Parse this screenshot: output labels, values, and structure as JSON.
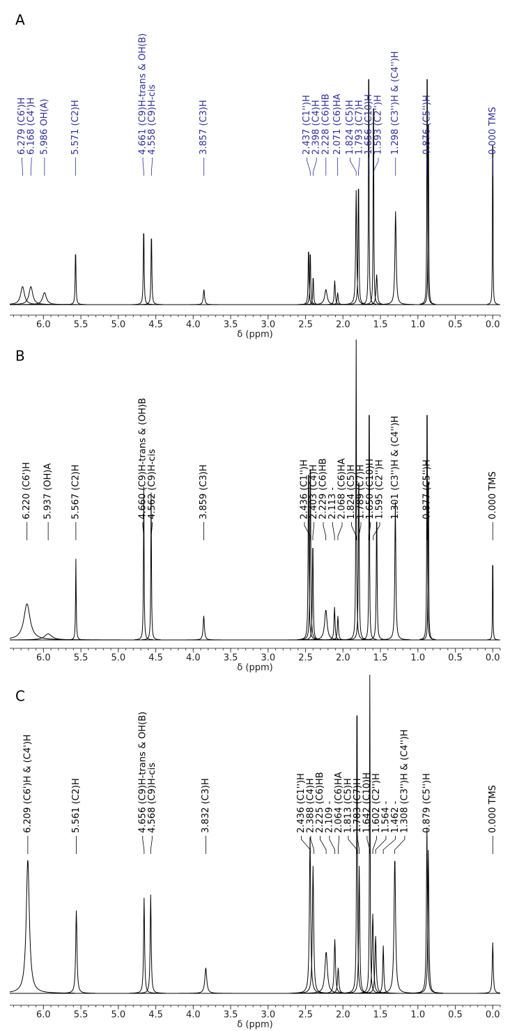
{
  "chart_data": [
    {
      "type": "spectrum",
      "label": "A",
      "xlabel": "δ (ppm)",
      "label_color": "#2e2e9a",
      "color": "#000000",
      "xlim": [
        6.45,
        -0.1
      ],
      "xticks": [
        {
          "value": 6,
          "label": "6.0"
        },
        5.5,
        {
          "value": 5,
          "label": "5.0"
        },
        4.5,
        {
          "value": 4,
          "label": "4.0"
        },
        3.5,
        {
          "value": 3,
          "label": "3.0"
        },
        2.5,
        {
          "value": 2,
          "label": "2.0"
        },
        1.5,
        {
          "value": 1,
          "label": "1.0"
        },
        0.5,
        {
          "value": 0,
          "label": "0.0"
        }
      ],
      "peaks": [
        {
          "ppm": 6.279,
          "label": "6.279 (C6')H"
        },
        {
          "ppm": 6.168,
          "label": "6.168 (C4')H"
        },
        {
          "ppm": 5.986,
          "label": "5.986 OH(A)"
        },
        {
          "ppm": 5.571,
          "label": "5.571 (C2)H"
        },
        {
          "ppm": 4.661,
          "label": "4.661 (C9)H-trans & OH(B)"
        },
        {
          "ppm": 4.558,
          "label": "4.558 (C9)H-cis"
        },
        {
          "ppm": 3.857,
          "label": "3.857 (C3)H"
        },
        {
          "ppm": 2.437,
          "label": "2.437 (C1'')H"
        },
        {
          "ppm": 2.398,
          "label": "2.398 (C4)H"
        },
        {
          "ppm": 2.228,
          "label": "2.228 (C6)HB"
        },
        {
          "ppm": 2.071,
          "label": "2.071 (C6)HA"
        },
        {
          "ppm": 1.824,
          "label": "1.824 (C5)H"
        },
        {
          "ppm": 1.793,
          "label": "1.793 (C7)H"
        },
        {
          "ppm": 1.656,
          "label": "1.656 (C10)H"
        },
        {
          "ppm": 1.593,
          "label": "1.593 (C2'')H"
        },
        {
          "ppm": 1.298,
          "label": "1.298 (C3'')H & (C4'')H"
        },
        {
          "ppm": 0.876,
          "label": "0.876 (C5'')H"
        },
        {
          "ppm": 0.0,
          "label": "0.000 TMS"
        }
      ],
      "signals": [
        {
          "ppm": 6.279,
          "height": 6,
          "width": 0.03
        },
        {
          "ppm": 6.168,
          "height": 6,
          "width": 0.03
        },
        {
          "ppm": 5.986,
          "height": 4,
          "width": 0.03
        },
        {
          "ppm": 5.571,
          "height": 19,
          "width": 0.006
        },
        {
          "ppm": 4.661,
          "height": 27,
          "width": 0.006
        },
        {
          "ppm": 4.558,
          "height": 25,
          "width": 0.006
        },
        {
          "ppm": 3.857,
          "height": 5,
          "width": 0.01
        },
        {
          "ppm": 2.46,
          "height": 20,
          "width": 0.006
        },
        {
          "ppm": 2.437,
          "height": 19,
          "width": 0.006
        },
        {
          "ppm": 2.398,
          "height": 10,
          "width": 0.006
        },
        {
          "ppm": 2.228,
          "height": 5,
          "width": 0.02
        },
        {
          "ppm": 2.11,
          "height": 8,
          "width": 0.008
        },
        {
          "ppm": 2.071,
          "height": 4,
          "width": 0.008
        },
        {
          "ppm": 1.824,
          "height": 38,
          "width": 0.008
        },
        {
          "ppm": 1.793,
          "height": 44,
          "width": 0.006
        },
        {
          "ppm": 1.656,
          "height": 100,
          "width": 0.004
        },
        {
          "ppm": 1.593,
          "height": 87,
          "width": 0.004
        },
        {
          "ppm": 1.55,
          "height": 10,
          "width": 0.01
        },
        {
          "ppm": 1.298,
          "height": 31,
          "width": 0.01
        },
        {
          "ppm": 0.876,
          "height": 100,
          "width": 0.004
        },
        {
          "ppm": 0.86,
          "height": 80,
          "width": 0.004
        },
        {
          "ppm": 0.0,
          "height": 83,
          "width": 0.003
        }
      ]
    },
    {
      "type": "spectrum",
      "label": "B",
      "xlabel": "δ (ppm)",
      "label_color": "#000000",
      "color": "#000000",
      "xlim": [
        6.45,
        -0.1
      ],
      "xticks": [
        {
          "value": 6,
          "label": "6.0"
        },
        5.5,
        {
          "value": 5,
          "label": "5.0"
        },
        4.5,
        {
          "value": 4,
          "label": "4.0"
        },
        3.5,
        {
          "value": 3,
          "label": "3.0"
        },
        2.5,
        {
          "value": 2,
          "label": "2.0"
        },
        1.5,
        {
          "value": 1,
          "label": "1.0"
        },
        0.5,
        {
          "value": 0,
          "label": "0.0"
        }
      ],
      "peaks": [
        {
          "ppm": 6.22,
          "label": "6.220 (C6')H"
        },
        {
          "ppm": 5.937,
          "label": "5.937 (OH)A"
        },
        {
          "ppm": 5.567,
          "label": "5.567 (C2)H"
        },
        {
          "ppm": 4.66,
          "label": "4.660 (C9)H-trans & (OH)B"
        },
        {
          "ppm": 4.562,
          "label": "4.562 (C9)H-cis"
        },
        {
          "ppm": 3.859,
          "label": "3.859 (C3)H"
        },
        {
          "ppm": 2.436,
          "label": "2.436 (C1'')H"
        },
        {
          "ppm": 2.403,
          "label": "2.403 (C4)H"
        },
        {
          "ppm": 2.229,
          "label": "2.229 (C6)HB"
        },
        {
          "ppm": 2.113,
          "label": "2.113 -"
        },
        {
          "ppm": 2.068,
          "label": "2.068 (C6)HA"
        },
        {
          "ppm": 1.824,
          "label": "1.824 (C5)H"
        },
        {
          "ppm": 1.789,
          "label": "1.789 (C7)H"
        },
        {
          "ppm": 1.65,
          "label": "1.650 (C10)H"
        },
        {
          "ppm": 1.595,
          "label": "1.595 (C2'')H"
        },
        {
          "ppm": 1.301,
          "label": "1.301 (C3'')H & (C4'')H"
        },
        {
          "ppm": 0.877,
          "label": "0.877 (C5'')H"
        },
        {
          "ppm": 0.0,
          "label": "0.000 TMS"
        }
      ],
      "signals": [
        {
          "ppm": 6.22,
          "height": 12,
          "width": 0.05
        },
        {
          "ppm": 5.937,
          "height": 2,
          "width": 0.06
        },
        {
          "ppm": 5.567,
          "height": 27,
          "width": 0.005
        },
        {
          "ppm": 4.66,
          "height": 51,
          "width": 0.005
        },
        {
          "ppm": 4.562,
          "height": 49,
          "width": 0.005
        },
        {
          "ppm": 3.859,
          "height": 8,
          "width": 0.01
        },
        {
          "ppm": 2.46,
          "height": 63,
          "width": 0.006
        },
        {
          "ppm": 2.436,
          "height": 65,
          "width": 0.006
        },
        {
          "ppm": 2.403,
          "height": 35,
          "width": 0.006
        },
        {
          "ppm": 2.229,
          "height": 10,
          "width": 0.02
        },
        {
          "ppm": 2.113,
          "height": 11,
          "width": 0.008
        },
        {
          "ppm": 2.068,
          "height": 8,
          "width": 0.008
        },
        {
          "ppm": 1.824,
          "height": 100,
          "width": 0.005
        },
        {
          "ppm": 1.789,
          "height": 60,
          "width": 0.006
        },
        {
          "ppm": 1.65,
          "height": 100,
          "width": 0.004
        },
        {
          "ppm": 1.55,
          "height": 45,
          "width": 0.006
        },
        {
          "ppm": 1.301,
          "height": 46,
          "width": 0.008
        },
        {
          "ppm": 0.877,
          "height": 100,
          "width": 0.004
        },
        {
          "ppm": 0.86,
          "height": 70,
          "width": 0.004
        },
        {
          "ppm": 0.0,
          "height": 39,
          "width": 0.003
        }
      ]
    },
    {
      "type": "spectrum",
      "label": "C",
      "xlabel": "δ (ppm)",
      "label_color": "#000000",
      "color": "#000000",
      "xlim": [
        6.45,
        -0.1
      ],
      "xticks": [
        {
          "value": 6,
          "label": "6.0"
        },
        5.5,
        {
          "value": 5,
          "label": "5.0"
        },
        4.5,
        {
          "value": 4,
          "label": "4.0"
        },
        3.5,
        {
          "value": 3,
          "label": "3.0"
        },
        2.5,
        {
          "value": 2,
          "label": "2.0"
        },
        1.5,
        {
          "value": 1,
          "label": "1.0"
        },
        0.5,
        {
          "value": 0,
          "label": "0.0"
        }
      ],
      "peaks": [
        {
          "ppm": 6.209,
          "label": "6.209 (C6')H & (C4')H"
        },
        {
          "ppm": 5.561,
          "label": "5.561 (C2)H"
        },
        {
          "ppm": 4.656,
          "label": "4.656 (C9)H-trans & OH(B)"
        },
        {
          "ppm": 4.568,
          "label": "4.568 (C9)H-cis"
        },
        {
          "ppm": 3.832,
          "label": "3.832 (C3)H"
        },
        {
          "ppm": 2.436,
          "label": "2.436 (C1'')H"
        },
        {
          "ppm": 2.388,
          "label": "2.388 (C4)H"
        },
        {
          "ppm": 2.225,
          "label": "2.225 (C6)HB"
        },
        {
          "ppm": 2.109,
          "label": "2.109 -"
        },
        {
          "ppm": 2.064,
          "label": "2.064 (C6)HA"
        },
        {
          "ppm": 1.813,
          "label": "1.813 (C5)H"
        },
        {
          "ppm": 1.783,
          "label": "1.783 (C7)H"
        },
        {
          "ppm": 1.642,
          "label": "1.642 (C10)H"
        },
        {
          "ppm": 1.602,
          "label": "1.602 (C2'')H"
        },
        {
          "ppm": 1.564,
          "label": "1.564 -"
        },
        {
          "ppm": 1.462,
          "label": "1.462 -"
        },
        {
          "ppm": 1.308,
          "label": "1.308 (C3'')H & (C4'')H"
        },
        {
          "ppm": 0.879,
          "label": "0.879 (C5'')H"
        },
        {
          "ppm": 0.0,
          "label": "0.000 TMS"
        }
      ],
      "signals": [
        {
          "ppm": 6.209,
          "height": 42,
          "width": 0.025
        },
        {
          "ppm": 5.561,
          "height": 26,
          "width": 0.01
        },
        {
          "ppm": 4.656,
          "height": 30,
          "width": 0.008
        },
        {
          "ppm": 4.568,
          "height": 31,
          "width": 0.008
        },
        {
          "ppm": 3.832,
          "height": 8,
          "width": 0.015
        },
        {
          "ppm": 2.44,
          "height": 49,
          "width": 0.01
        },
        {
          "ppm": 2.4,
          "height": 40,
          "width": 0.01
        },
        {
          "ppm": 2.225,
          "height": 13,
          "width": 0.02
        },
        {
          "ppm": 2.109,
          "height": 17,
          "width": 0.01
        },
        {
          "ppm": 2.064,
          "height": 8,
          "width": 0.01
        },
        {
          "ppm": 1.813,
          "height": 100,
          "width": 0.006
        },
        {
          "ppm": 1.783,
          "height": 40,
          "width": 0.008
        },
        {
          "ppm": 1.642,
          "height": 100,
          "width": 0.005
        },
        {
          "ppm": 1.602,
          "height": 25,
          "width": 0.01
        },
        {
          "ppm": 1.564,
          "height": 18,
          "width": 0.01
        },
        {
          "ppm": 1.462,
          "height": 15,
          "width": 0.008
        },
        {
          "ppm": 1.308,
          "height": 43,
          "width": 0.012
        },
        {
          "ppm": 0.879,
          "height": 52,
          "width": 0.008
        },
        {
          "ppm": 0.86,
          "height": 45,
          "width": 0.008
        },
        {
          "ppm": 0.0,
          "height": 16,
          "width": 0.008
        }
      ]
    }
  ]
}
